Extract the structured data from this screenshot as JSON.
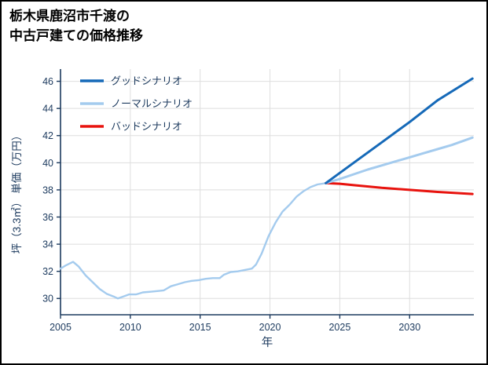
{
  "title": {
    "line1": "栃木県鹿沼市千渡の",
    "line2": "中古戸建ての価格推移"
  },
  "chart_data": {
    "type": "line",
    "title": "栃木県鹿沼市千渡の中古戸建ての価格推移",
    "xlabel": "年",
    "ylabel": "坪（3.3㎡） 単価（万円）",
    "x_ticks": [
      2005,
      2010,
      2015,
      2020,
      2025,
      2030
    ],
    "y_ticks": [
      30,
      32,
      34,
      36,
      38,
      40,
      42,
      44,
      46
    ],
    "x_range": [
      2005,
      2034.6
    ],
    "y_range": [
      28.8,
      46.9
    ],
    "grid": true,
    "legend_position": "upper-left",
    "colors": {
      "good": "#1569b8",
      "normal": "#a4cbee",
      "bad": "#e8130e",
      "axis": "#1c3a5e",
      "grid": "#dedede",
      "title_text": "#000000"
    },
    "legend": [
      {
        "key": "good",
        "label": "グッドシナリオ"
      },
      {
        "key": "normal",
        "label": "ノーマルシナリオ"
      },
      {
        "key": "bad",
        "label": "バッドシナリオ"
      }
    ],
    "series": [
      {
        "name": "history",
        "color_key": "normal",
        "width": 2.4,
        "points": [
          [
            2005.0,
            32.2
          ],
          [
            2005.4,
            32.45
          ],
          [
            2005.9,
            32.7
          ],
          [
            2006.3,
            32.35
          ],
          [
            2006.8,
            31.7
          ],
          [
            2007.3,
            31.2
          ],
          [
            2007.8,
            30.7
          ],
          [
            2008.3,
            30.35
          ],
          [
            2008.8,
            30.15
          ],
          [
            2009.1,
            30.0
          ],
          [
            2009.5,
            30.15
          ],
          [
            2009.9,
            30.3
          ],
          [
            2010.4,
            30.3
          ],
          [
            2010.9,
            30.45
          ],
          [
            2011.5,
            30.5
          ],
          [
            2012.0,
            30.55
          ],
          [
            2012.4,
            30.6
          ],
          [
            2012.9,
            30.9
          ],
          [
            2013.4,
            31.05
          ],
          [
            2013.9,
            31.2
          ],
          [
            2014.4,
            31.3
          ],
          [
            2014.9,
            31.35
          ],
          [
            2015.4,
            31.45
          ],
          [
            2015.9,
            31.5
          ],
          [
            2016.4,
            31.5
          ],
          [
            2016.7,
            31.75
          ],
          [
            2017.2,
            31.95
          ],
          [
            2017.7,
            32.0
          ],
          [
            2018.2,
            32.1
          ],
          [
            2018.7,
            32.2
          ],
          [
            2019.0,
            32.5
          ],
          [
            2019.4,
            33.3
          ],
          [
            2019.9,
            34.6
          ],
          [
            2020.4,
            35.6
          ],
          [
            2020.9,
            36.4
          ],
          [
            2021.4,
            36.9
          ],
          [
            2021.9,
            37.5
          ],
          [
            2022.4,
            37.9
          ],
          [
            2022.9,
            38.2
          ],
          [
            2023.4,
            38.4
          ],
          [
            2024.0,
            38.5
          ]
        ]
      },
      {
        "name": "bad",
        "color_key": "bad",
        "width": 3,
        "points": [
          [
            2024.0,
            38.5
          ],
          [
            2025.0,
            38.45
          ],
          [
            2026.0,
            38.35
          ],
          [
            2028.0,
            38.15
          ],
          [
            2030.0,
            38.0
          ],
          [
            2032.0,
            37.85
          ],
          [
            2034.5,
            37.7
          ]
        ]
      },
      {
        "name": "normal",
        "color_key": "normal",
        "width": 3,
        "points": [
          [
            2024.0,
            38.5
          ],
          [
            2025.0,
            38.8
          ],
          [
            2026.0,
            39.15
          ],
          [
            2027.0,
            39.5
          ],
          [
            2028.0,
            39.8
          ],
          [
            2029.0,
            40.1
          ],
          [
            2030.0,
            40.4
          ],
          [
            2031.0,
            40.7
          ],
          [
            2032.0,
            41.0
          ],
          [
            2033.0,
            41.3
          ],
          [
            2034.5,
            41.85
          ]
        ]
      },
      {
        "name": "good",
        "color_key": "good",
        "width": 3,
        "points": [
          [
            2024.0,
            38.5
          ],
          [
            2026.0,
            40.0
          ],
          [
            2028.0,
            41.5
          ],
          [
            2030.0,
            43.0
          ],
          [
            2032.0,
            44.6
          ],
          [
            2034.5,
            46.2
          ]
        ]
      }
    ]
  }
}
